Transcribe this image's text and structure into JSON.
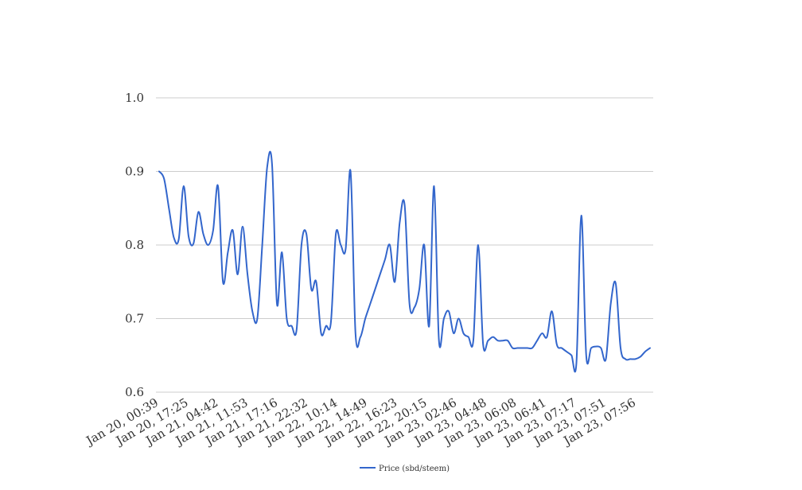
{
  "chart_data": {
    "type": "line",
    "title": "",
    "xlabel": "",
    "ylabel": "",
    "ylim": [
      0.6,
      1.0
    ],
    "yticks": [
      "0.6",
      "0.7",
      "0.8",
      "0.9",
      "1.0"
    ],
    "grid": true,
    "legend_position": "bottom-center",
    "xtick_labels": [
      "Jan 20, 00:39",
      "Jan 20, 17:25",
      "Jan 21, 04:42",
      "Jan 21, 11:53",
      "Jan 21, 17:16",
      "Jan 21, 22:32",
      "Jan 22, 10:14",
      "Jan 22, 14:49",
      "Jan 22, 16:23",
      "Jan 22, 20:15",
      "Jan 23, 02:46",
      "Jan 23, 04:48",
      "Jan 23, 06:08",
      "Jan 23, 06:41",
      "Jan 23, 07:17",
      "Jan 23, 07:51",
      "Jan 23, 07:56"
    ],
    "series": [
      {
        "name": "Price (sbd/steem)",
        "color": "#3366cc",
        "values": [
          0.9,
          0.89,
          0.85,
          0.81,
          0.808,
          0.88,
          0.812,
          0.802,
          0.845,
          0.815,
          0.8,
          0.82,
          0.88,
          0.75,
          0.79,
          0.82,
          0.76,
          0.825,
          0.76,
          0.71,
          0.7,
          0.8,
          0.905,
          0.91,
          0.72,
          0.79,
          0.7,
          0.69,
          0.685,
          0.8,
          0.815,
          0.74,
          0.75,
          0.68,
          0.69,
          0.695,
          0.815,
          0.8,
          0.795,
          0.9,
          0.68,
          0.675,
          0.7,
          0.72,
          0.74,
          0.76,
          0.78,
          0.8,
          0.75,
          0.83,
          0.855,
          0.72,
          0.715,
          0.74,
          0.8,
          0.69,
          0.88,
          0.67,
          0.7,
          0.71,
          0.68,
          0.7,
          0.68,
          0.675,
          0.67,
          0.8,
          0.665,
          0.67,
          0.675,
          0.67,
          0.67,
          0.67,
          0.66,
          0.66,
          0.66,
          0.66,
          0.66,
          0.67,
          0.68,
          0.675,
          0.71,
          0.665,
          0.66,
          0.655,
          0.65,
          0.64,
          0.84,
          0.65,
          0.66,
          0.662,
          0.66,
          0.645,
          0.72,
          0.748,
          0.66,
          0.645,
          0.645,
          0.645,
          0.648,
          0.655,
          0.66
        ]
      }
    ]
  }
}
